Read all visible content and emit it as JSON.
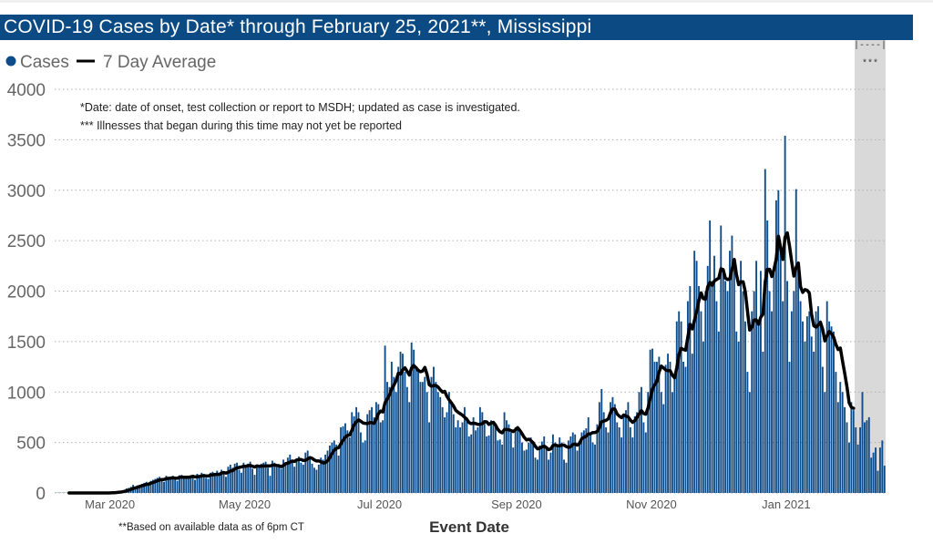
{
  "title": "COVID-19 Cases by Date* through February 25, 2021**, Mississippi",
  "chart_data": {
    "type": "bar",
    "title": "COVID-19 Cases by Date* through February 25, 2021**, Mississippi",
    "xlabel": "Event Date",
    "ylabel": "",
    "ylim": [
      0,
      4000
    ],
    "yticks": [
      0,
      500,
      1000,
      1500,
      2000,
      2500,
      3000,
      3500,
      4000
    ],
    "grid": true,
    "legend_position": "top-left",
    "legend": [
      {
        "name": "Cases",
        "marker": "dot",
        "color": "#0e4c8a"
      },
      {
        "name": "7 Day Average",
        "marker": "line",
        "color": "#000000"
      }
    ],
    "xticks": [
      {
        "label": "Mar 2020",
        "month": "2020-03"
      },
      {
        "label": "May 2020",
        "month": "2020-05"
      },
      {
        "label": "Jul 2020",
        "month": "2020-07"
      },
      {
        "label": "Sep 2020",
        "month": "2020-09"
      },
      {
        "label": "Nov 2020",
        "month": "2020-11"
      },
      {
        "label": "Jan 2021",
        "month": "2021-01"
      }
    ],
    "series": [
      {
        "name": "Cases",
        "kind": "bar",
        "color": "#0e4c8a",
        "daily_by_month": [
          {
            "month": "2020-02",
            "first_day": 16,
            "values": [
              0,
              0,
              0,
              0,
              0,
              0,
              0,
              0,
              0,
              0,
              0,
              0,
              0,
              0
            ]
          },
          {
            "month": "2020-03",
            "first_day": 1,
            "values": [
              0,
              0,
              0,
              0,
              0,
              0,
              0,
              0,
              0,
              0,
              1,
              5,
              6,
              10,
              13,
              20,
              22,
              30,
              45,
              50,
              60,
              80,
              60,
              75,
              80,
              90,
              100,
              110,
              95,
              120,
              130
            ]
          },
          {
            "month": "2020-04",
            "first_day": 1,
            "values": [
              140,
              150,
              160,
              130,
              110,
              170,
              150,
              160,
              170,
              140,
              120,
              175,
              180,
              150,
              160,
              165,
              170,
              155,
              130,
              190,
              175,
              200,
              185,
              150,
              140,
              200,
              210,
              190,
              220,
              180
            ]
          },
          {
            "month": "2020-05",
            "first_day": 1,
            "values": [
              230,
              190,
              160,
              260,
              280,
              250,
              290,
              300,
              230,
              200,
              300,
              280,
              290,
              310,
              240,
              180,
              270,
              280,
              290,
              300,
              310,
              250,
              170,
              320,
              300,
              260,
              280,
              240,
              330,
              300,
              350
            ]
          },
          {
            "month": "2020-06",
            "first_day": 1,
            "values": [
              380,
              330,
              260,
              340,
              360,
              300,
              280,
              400,
              420,
              350,
              290,
              250,
              230,
              280,
              350,
              330,
              380,
              420,
              470,
              500,
              520,
              480,
              370,
              650,
              660,
              690,
              620,
              550,
              800,
              760
            ]
          },
          {
            "month": "2020-07",
            "first_day": 1,
            "values": [
              850,
              800,
              600,
              500,
              520,
              780,
              820,
              850,
              750,
              900,
              880,
              700,
              720,
              1460,
              1100,
              1050,
              1300,
              1150,
              1000,
              1250,
              1400,
              1380,
              1200,
              1050,
              900,
              1490,
              1420,
              1250,
              1200,
              1100,
              1100
            ]
          },
          {
            "month": "2020-08",
            "first_day": 1,
            "values": [
              1150,
              1000,
              700,
              1150,
              1250,
              1100,
              1000,
              950,
              850,
              750,
              800,
              1000,
              900,
              780,
              650,
              720,
              650,
              700,
              850,
              750,
              560,
              580,
              750,
              620,
              650,
              850,
              800,
              700,
              560,
              570,
              720
            ]
          },
          {
            "month": "2020-09",
            "first_day": 1,
            "values": [
              700,
              650,
              520,
              530,
              480,
              800,
              720,
              680,
              600,
              450,
              650,
              630,
              600,
              500,
              420,
              430,
              500,
              550,
              480,
              350,
              330,
              470,
              510,
              560,
              450,
              330,
              400,
              580,
              500,
              460
            ]
          },
          {
            "month": "2020-10",
            "first_day": 1,
            "values": [
              550,
              500,
              330,
              300,
              520,
              560,
              600,
              580,
              420,
              480,
              600,
              620,
              640,
              750,
              600,
              500,
              480,
              680,
              900,
              1030,
              800,
              650,
              600,
              900,
              950,
              880,
              700,
              650,
              550,
              780,
              820
            ]
          },
          {
            "month": "2020-11",
            "first_day": 1,
            "values": [
              900,
              650,
              550,
              760,
              800,
              1000,
              1050,
              700,
              600,
              1000,
              1420,
              1430,
              1300,
              1300,
              1350,
              1000,
              880,
              1270,
              1380,
              1300,
              1000,
              1150,
              1700,
              1800,
              1700,
              1300,
              1250,
              1900,
              2050,
              1380
            ]
          },
          {
            "month": "2020-12",
            "first_day": 1,
            "values": [
              2400,
              2300,
              2050,
              1800,
              1500,
              2000,
              2250,
              2700,
              2100,
              2350,
              1900,
              1600,
              2650,
              2200,
              2100,
              2000,
              2400,
              2550,
              2300,
              1600,
              1500,
              2300,
              2000,
              1700,
              1200,
              1000,
              1800,
              2000,
              2300,
              1700,
              2200
            ]
          },
          {
            "month": "2021-01",
            "first_day": 1,
            "values": [
              1400,
              3210,
              2700,
              2000,
              1800,
              2200,
              2900,
              3000,
              2400,
              1900,
              3540,
              2100,
              1300,
              1800,
              2000,
              3010,
              2200,
              1900,
              1700,
              1500,
              1750,
              1800,
              1550,
              1400,
              1800,
              1850,
              1700,
              1250,
              1000,
              1900,
              1700
            ]
          },
          {
            "month": "2021-02",
            "first_day": 1,
            "values": [
              1650,
              1600,
              1200,
              900,
              1100,
              1000,
              850,
              700,
              500,
              900,
              820,
              650,
              480,
              650,
              1000,
              700,
              720,
              750,
              350,
              400,
              450,
              220,
              450,
              520,
              270
            ]
          }
        ]
      },
      {
        "name": "7 Day Average",
        "kind": "line",
        "color": "#000000",
        "method": "7-day rolling mean of Cases"
      }
    ],
    "shaded_region": {
      "start": "2021-02-12",
      "end": "2021-02-25",
      "color": "#d9d9d9",
      "bracket_label": "|----|",
      "marker": "***"
    },
    "annotations": [
      "*Date: date of onset, test collection or report to MSDH; updated as case is investigated.",
      "*** Illnesses that began during this time may not yet be reported"
    ],
    "footnote": "**Based on available data as of 6pm CT"
  }
}
